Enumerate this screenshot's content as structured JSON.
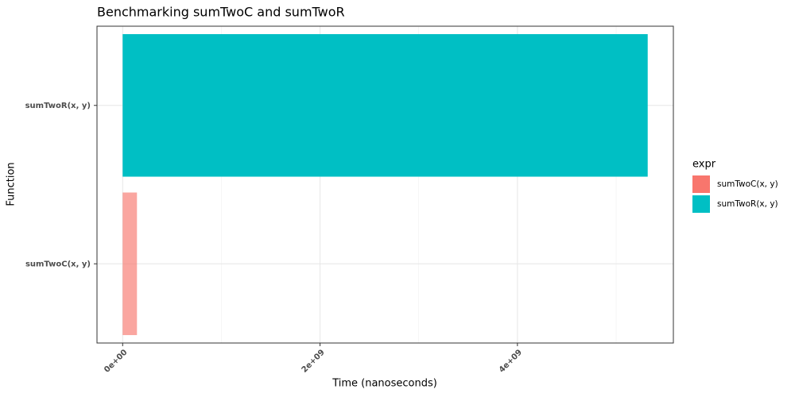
{
  "chart_data": {
    "type": "hbar",
    "title": "Benchmarking sumTwoC and sumTwoR",
    "x_label": "Time (nanoseconds)",
    "y_label": "Function",
    "categories": [
      "sumTwoC(x, y)",
      "sumTwoR(x, y)"
    ],
    "values": [
      145000000,
      5320000000
    ],
    "colors": [
      "#F8766D",
      "#00BFC4"
    ],
    "xlim": [
      -260000000,
      5580000000
    ],
    "xticks": [
      {
        "value": 0,
        "label": "0e+00"
      },
      {
        "value": 2000000000,
        "label": "2e+09"
      },
      {
        "value": 4000000000,
        "label": "4e+09"
      }
    ],
    "x_minor_ticks": [
      1000000000,
      3000000000,
      5000000000
    ],
    "grid": true,
    "legend_title": "expr",
    "legend_position": "right"
  }
}
